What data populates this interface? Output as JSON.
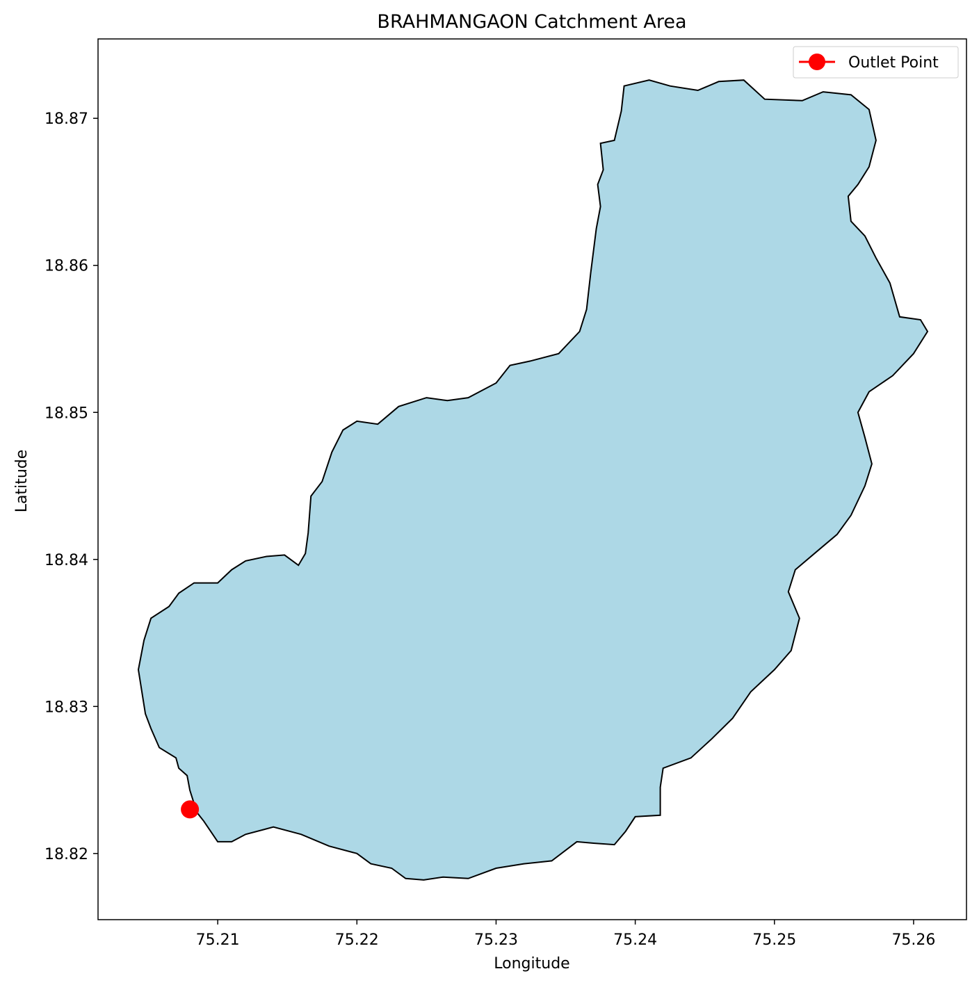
{
  "chart_data": {
    "type": "map",
    "title": "BRAHMANGAON Catchment Area",
    "xlabel": "Longitude",
    "ylabel": "Latitude",
    "xlim": [
      75.2014,
      75.2638
    ],
    "ylim": [
      18.8155,
      18.8754
    ],
    "xticks": [
      75.21,
      75.22,
      75.23,
      75.24,
      75.25,
      75.26
    ],
    "xtick_labels": [
      "75.21",
      "75.22",
      "75.23",
      "75.24",
      "75.25",
      "75.26"
    ],
    "yticks": [
      18.82,
      18.83,
      18.84,
      18.85,
      18.86,
      18.87
    ],
    "ytick_labels": [
      "18.82",
      "18.83",
      "18.84",
      "18.85",
      "18.86",
      "18.87"
    ],
    "grid": false,
    "legend": {
      "position": "top-right",
      "entries": [
        {
          "label": "Outlet Point",
          "color": "#ff0000",
          "marker": "circle"
        }
      ]
    },
    "catchment": {
      "fill_color": "#add8e6",
      "edge_color": "#000000",
      "boundary": [
        [
          75.208,
          18.8243
        ],
        [
          75.2078,
          18.8253
        ],
        [
          75.2072,
          18.8258
        ],
        [
          75.207,
          18.8265
        ],
        [
          75.2058,
          18.8272
        ],
        [
          75.2052,
          18.8285
        ],
        [
          75.2048,
          18.8295
        ],
        [
          75.2043,
          18.8325
        ],
        [
          75.2047,
          18.8345
        ],
        [
          75.2052,
          18.836
        ],
        [
          75.2065,
          18.8368
        ],
        [
          75.2072,
          18.8377
        ],
        [
          75.2083,
          18.8384
        ],
        [
          75.21,
          18.8384
        ],
        [
          75.211,
          18.8393
        ],
        [
          75.212,
          18.8399
        ],
        [
          75.2135,
          18.8402
        ],
        [
          75.2148,
          18.8403
        ],
        [
          75.2158,
          18.8396
        ],
        [
          75.2163,
          18.8404
        ],
        [
          75.2165,
          18.8418
        ],
        [
          75.2167,
          18.8443
        ],
        [
          75.2175,
          18.8453
        ],
        [
          75.2182,
          18.8473
        ],
        [
          75.219,
          18.8488
        ],
        [
          75.22,
          18.8494
        ],
        [
          75.2215,
          18.8492
        ],
        [
          75.223,
          18.8504
        ],
        [
          75.225,
          18.851
        ],
        [
          75.2265,
          18.8508
        ],
        [
          75.228,
          18.851
        ],
        [
          75.23,
          18.852
        ],
        [
          75.231,
          18.8532
        ],
        [
          75.2325,
          18.8535
        ],
        [
          75.2345,
          18.854
        ],
        [
          75.236,
          18.8555
        ],
        [
          75.2365,
          18.857
        ],
        [
          75.2368,
          18.8595
        ],
        [
          75.2372,
          18.8625
        ],
        [
          75.2375,
          18.864
        ],
        [
          75.2373,
          18.8655
        ],
        [
          75.2377,
          18.8665
        ],
        [
          75.2375,
          18.8683
        ],
        [
          75.2385,
          18.8685
        ],
        [
          75.239,
          18.8705
        ],
        [
          75.2392,
          18.8722
        ],
        [
          75.241,
          18.8726
        ],
        [
          75.2425,
          18.8722
        ],
        [
          75.2445,
          18.8719
        ],
        [
          75.246,
          18.8725
        ],
        [
          75.2478,
          18.8726
        ],
        [
          75.2493,
          18.8713
        ],
        [
          75.252,
          18.8712
        ],
        [
          75.2535,
          18.8718
        ],
        [
          75.2555,
          18.8716
        ],
        [
          75.2568,
          18.8706
        ],
        [
          75.2573,
          18.8685
        ],
        [
          75.2568,
          18.8667
        ],
        [
          75.256,
          18.8655
        ],
        [
          75.2553,
          18.8647
        ],
        [
          75.2555,
          18.863
        ],
        [
          75.2565,
          18.862
        ],
        [
          75.2573,
          18.8605
        ],
        [
          75.2583,
          18.8588
        ],
        [
          75.259,
          18.8565
        ],
        [
          75.2605,
          18.8563
        ],
        [
          75.261,
          18.8555
        ],
        [
          75.26,
          18.854
        ],
        [
          75.2585,
          18.8525
        ],
        [
          75.2568,
          18.8514
        ],
        [
          75.256,
          18.85
        ],
        [
          75.2565,
          18.8483
        ],
        [
          75.257,
          18.8465
        ],
        [
          75.2565,
          18.845
        ],
        [
          75.2555,
          18.843
        ],
        [
          75.2545,
          18.8417
        ],
        [
          75.253,
          18.8405
        ],
        [
          75.2515,
          18.8393
        ],
        [
          75.251,
          18.8378
        ],
        [
          75.2518,
          18.836
        ],
        [
          75.2512,
          18.8338
        ],
        [
          75.25,
          18.8325
        ],
        [
          75.2483,
          18.831
        ],
        [
          75.247,
          18.8292
        ],
        [
          75.2455,
          18.8278
        ],
        [
          75.244,
          18.8265
        ],
        [
          75.242,
          18.8258
        ],
        [
          75.2418,
          18.8245
        ],
        [
          75.2418,
          18.8226
        ],
        [
          75.24,
          18.8225
        ],
        [
          75.2393,
          18.8215
        ],
        [
          75.2385,
          18.8206
        ],
        [
          75.237,
          18.8207
        ],
        [
          75.2358,
          18.8208
        ],
        [
          75.234,
          18.8195
        ],
        [
          75.232,
          18.8193
        ],
        [
          75.23,
          18.819
        ],
        [
          75.228,
          18.8183
        ],
        [
          75.2262,
          18.8184
        ],
        [
          75.2248,
          18.8182
        ],
        [
          75.2235,
          18.8183
        ],
        [
          75.2225,
          18.819
        ],
        [
          75.221,
          18.8193
        ],
        [
          75.22,
          18.82
        ],
        [
          75.218,
          18.8205
        ],
        [
          75.216,
          18.8213
        ],
        [
          75.214,
          18.8218
        ],
        [
          75.212,
          18.8213
        ],
        [
          75.211,
          18.8208
        ],
        [
          75.21,
          18.8208
        ],
        [
          75.2095,
          18.8215
        ],
        [
          75.209,
          18.8222
        ],
        [
          75.2085,
          18.8228
        ],
        [
          75.2082,
          18.8237
        ],
        [
          75.208,
          18.8243
        ]
      ]
    },
    "outlet_point": {
      "label": "Outlet Point",
      "lon": 75.208,
      "lat": 18.823,
      "color": "#ff0000"
    }
  }
}
